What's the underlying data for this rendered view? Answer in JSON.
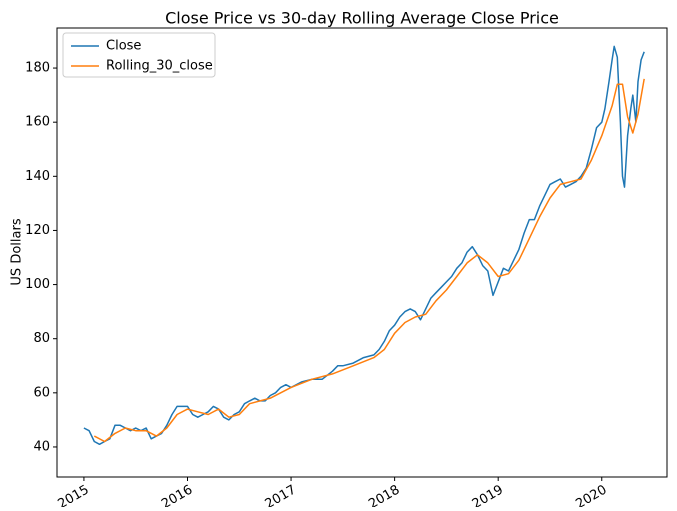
{
  "chart_data": {
    "type": "line",
    "title": "Close Price vs 30-day Rolling Average Close Price",
    "ylabel": "US Dollars",
    "xlim": [
      2014.74,
      2020.63
    ],
    "ylim": [
      28.9,
      194.8
    ],
    "xticks": [
      2015,
      2016,
      2017,
      2018,
      2019,
      2020
    ],
    "yticks": [
      40,
      60,
      80,
      100,
      120,
      140,
      160,
      180
    ],
    "grid": false,
    "legend": "upper left",
    "series": [
      {
        "name": "Close",
        "color": "#1f77b4",
        "x": [
          2015.0,
          2015.05,
          2015.1,
          2015.15,
          2015.2,
          2015.25,
          2015.3,
          2015.35,
          2015.4,
          2015.45,
          2015.5,
          2015.55,
          2015.6,
          2015.65,
          2015.7,
          2015.75,
          2015.8,
          2015.85,
          2015.9,
          2015.95,
          2016.0,
          2016.05,
          2016.1,
          2016.15,
          2016.2,
          2016.25,
          2016.3,
          2016.35,
          2016.4,
          2016.45,
          2016.5,
          2016.55,
          2016.6,
          2016.65,
          2016.7,
          2016.75,
          2016.8,
          2016.85,
          2016.9,
          2016.95,
          2017.0,
          2017.1,
          2017.2,
          2017.3,
          2017.4,
          2017.45,
          2017.5,
          2017.6,
          2017.7,
          2017.8,
          2017.85,
          2017.9,
          2017.95,
          2018.0,
          2018.05,
          2018.1,
          2018.15,
          2018.2,
          2018.25,
          2018.3,
          2018.35,
          2018.4,
          2018.45,
          2018.5,
          2018.55,
          2018.6,
          2018.65,
          2018.7,
          2018.75,
          2018.8,
          2018.85,
          2018.9,
          2018.95,
          2019.0,
          2019.05,
          2019.1,
          2019.15,
          2019.2,
          2019.25,
          2019.3,
          2019.35,
          2019.4,
          2019.45,
          2019.5,
          2019.55,
          2019.6,
          2019.65,
          2019.7,
          2019.75,
          2019.8,
          2019.85,
          2019.9,
          2019.95,
          2020.0,
          2020.03,
          2020.07,
          2020.1,
          2020.12,
          2020.15,
          2020.18,
          2020.2,
          2020.22,
          2020.25,
          2020.28,
          2020.3,
          2020.33,
          2020.35,
          2020.38,
          2020.41
        ],
        "values": [
          47,
          46,
          42,
          41,
          42,
          43,
          48,
          48,
          47,
          46,
          47,
          46,
          47,
          43,
          44,
          45,
          48,
          52,
          55,
          55,
          55,
          52,
          51,
          52,
          53,
          55,
          54,
          51,
          50,
          52,
          53,
          56,
          57,
          58,
          57,
          57,
          59,
          60,
          62,
          63,
          62,
          64,
          65,
          65,
          68,
          70,
          70,
          71,
          73,
          74,
          76,
          79,
          83,
          85,
          88,
          90,
          91,
          90,
          87,
          91,
          95,
          97,
          99,
          101,
          103,
          106,
          108,
          112,
          114,
          111,
          107,
          105,
          96,
          101,
          106,
          105,
          109,
          113,
          119,
          124,
          124,
          129,
          133,
          137,
          138,
          139,
          136,
          137,
          138,
          140,
          143,
          150,
          158,
          160,
          165,
          175,
          183,
          188,
          184,
          160,
          140,
          136,
          155,
          165,
          170,
          160,
          175,
          183,
          186
        ]
      },
      {
        "name": "Rolling_30_close",
        "color": "#ff7f0e",
        "x": [
          2015.1,
          2015.2,
          2015.3,
          2015.4,
          2015.5,
          2015.6,
          2015.7,
          2015.8,
          2015.9,
          2016.0,
          2016.1,
          2016.2,
          2016.3,
          2016.4,
          2016.5,
          2016.6,
          2016.7,
          2016.8,
          2016.9,
          2017.0,
          2017.2,
          2017.4,
          2017.6,
          2017.8,
          2017.9,
          2018.0,
          2018.1,
          2018.2,
          2018.3,
          2018.4,
          2018.5,
          2018.6,
          2018.7,
          2018.8,
          2018.9,
          2019.0,
          2019.1,
          2019.2,
          2019.3,
          2019.4,
          2019.5,
          2019.6,
          2019.7,
          2019.8,
          2019.9,
          2020.0,
          2020.1,
          2020.15,
          2020.2,
          2020.25,
          2020.3,
          2020.35,
          2020.41
        ],
        "values": [
          44,
          42,
          45,
          47,
          46,
          46,
          44,
          47,
          52,
          54,
          53,
          52,
          54,
          51,
          52,
          56,
          57,
          58,
          60,
          62,
          65,
          67,
          70,
          73,
          76,
          82,
          86,
          88,
          89,
          94,
          98,
          103,
          108,
          111,
          108,
          103,
          104,
          109,
          117,
          125,
          132,
          137,
          138,
          139,
          146,
          155,
          166,
          174,
          174,
          162,
          156,
          163,
          176
        ]
      }
    ]
  }
}
